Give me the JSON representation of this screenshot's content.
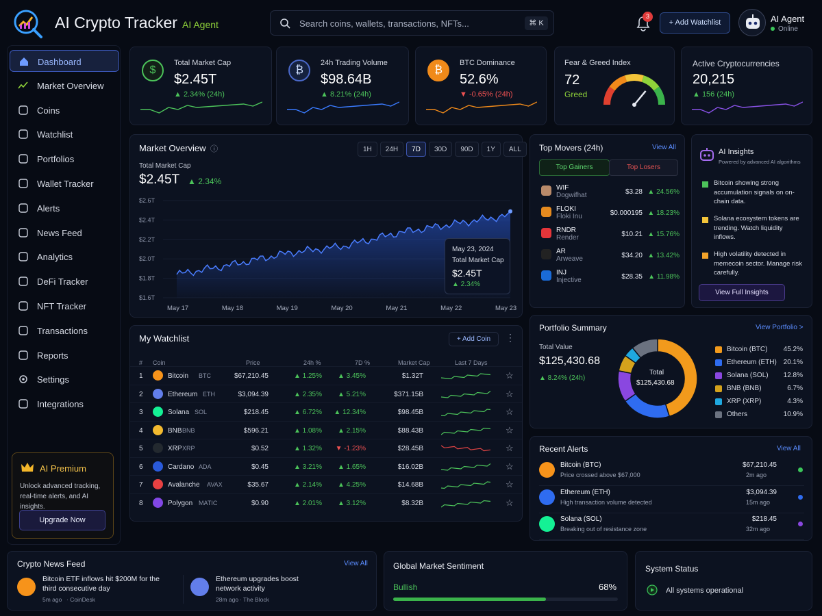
{
  "app": {
    "title": "AI Crypto Tracker",
    "subtitle": "AI Agent"
  },
  "header": {
    "search_placeholder": "Search coins, wallets, transactions, NFTs...",
    "search_shortcut": "⌘ K",
    "notifications": "3",
    "add_watchlist": "+ Add Watchlist",
    "agent_name": "AI Agent",
    "agent_status": "Online"
  },
  "sidebar": {
    "items": [
      {
        "label": "Dashboard",
        "icon": "home-icon"
      },
      {
        "label": "Market Overview",
        "icon": "chart-icon"
      },
      {
        "label": "Coins",
        "icon": "dollar-coin-icon"
      },
      {
        "label": "Watchlist",
        "icon": "clipboard-icon"
      },
      {
        "label": "Portfolios",
        "icon": "briefcase-icon"
      },
      {
        "label": "Wallet Tracker",
        "icon": "wallet-icon"
      },
      {
        "label": "Alerts",
        "icon": "bell-icon"
      },
      {
        "label": "News Feed",
        "icon": "newspaper-icon"
      },
      {
        "label": "Analytics",
        "icon": "bar-chart-icon"
      },
      {
        "label": "DeFi Tracker",
        "icon": "defi-icon"
      },
      {
        "label": "NFT Tracker",
        "icon": "nft-icon"
      },
      {
        "label": "Transactions",
        "icon": "transactions-icon"
      },
      {
        "label": "Reports",
        "icon": "report-icon"
      },
      {
        "label": "Settings",
        "icon": "gear-icon"
      },
      {
        "label": "Integrations",
        "icon": "puzzle-icon"
      }
    ],
    "premium": {
      "title": "AI Premium",
      "desc": "Unlock advanced tracking, real-time alerts, and AI insights.",
      "button": "Upgrade Now"
    }
  },
  "stats": [
    {
      "label": "Total Market Cap",
      "value": "$2.45T",
      "change": "▲ 2.34% (24h)",
      "color": "#4cc35a"
    },
    {
      "label": "24h Trading Volume",
      "value": "$98.64B",
      "change": "▲ 8.21% (24h)",
      "color": "#3a7bff"
    },
    {
      "label": "BTC Dominance",
      "value": "52.6%",
      "change": "▼ -0.65% (24h)",
      "color": "#f08a1a"
    },
    {
      "label": "Fear & Greed Index",
      "value": "72",
      "change": "Greed"
    },
    {
      "label": "Active Cryptocurrencies",
      "value": "20,215",
      "change": "▲ 156 (24h)",
      "color": "#8a52e8"
    }
  ],
  "market_overview": {
    "title": "Market Overview",
    "ranges": [
      "1H",
      "24H",
      "7D",
      "30D",
      "90D",
      "1Y",
      "ALL"
    ],
    "selected": "7D",
    "label": "Total Market Cap",
    "value": "$2.45T",
    "change": "▲ 2.34%",
    "tooltip": {
      "date": "May 23, 2024",
      "label": "Total Market Cap",
      "value": "$2.45T",
      "change": "▲ 2.34%"
    }
  },
  "chart_data": {
    "type": "area",
    "x": [
      "May 17",
      "May 18",
      "May 19",
      "May 20",
      "May 21",
      "May 22",
      "May 23"
    ],
    "y_ticks": [
      "$1.6T",
      "$1.8T",
      "$2.0T",
      "$2.2T",
      "$2.4T",
      "$2.6T"
    ],
    "ylim": [
      1.6,
      2.6
    ],
    "series": [
      {
        "values": [
          1.84,
          1.94,
          2.06,
          2.13,
          2.27,
          2.36,
          2.45
        ]
      }
    ]
  },
  "watchlist": {
    "title": "My Watchlist",
    "add": "+ Add Coin",
    "headers": [
      "#",
      "Coin",
      "Price",
      "24h %",
      "7D %",
      "Market Cap",
      "Last 7 Days"
    ],
    "rows": [
      {
        "n": "1",
        "name": "Bitcoin",
        "sym": "BTC",
        "price": "$67,210.45",
        "d24": "▲ 1.25%",
        "d7": "▲ 3.45%",
        "mcap": "$1.32T",
        "color": "#f7931a",
        "trend": "up"
      },
      {
        "n": "2",
        "name": "Ethereum",
        "sym": "ETH",
        "price": "$3,094.39",
        "d24": "▲ 2.35%",
        "d7": "▲ 5.21%",
        "mcap": "$371.15B",
        "color": "#627eea",
        "trend": "up"
      },
      {
        "n": "3",
        "name": "Solana",
        "sym": "SOL",
        "price": "$218.45",
        "d24": "▲ 6.72%",
        "d7": "▲ 12.34%",
        "mcap": "$98.45B",
        "color": "#14f195",
        "trend": "up"
      },
      {
        "n": "4",
        "name": "BNB",
        "sym": "BNB",
        "price": "$596.21",
        "d24": "▲ 1.08%",
        "d7": "▲ 2.15%",
        "mcap": "$88.43B",
        "color": "#f3ba2f",
        "trend": "up"
      },
      {
        "n": "5",
        "name": "XRP",
        "sym": "XRP",
        "price": "$0.52",
        "d24": "▲ 1.32%",
        "d7": "▼ -1.23%",
        "mcap": "$28.45B",
        "color": "#23292f",
        "trend": "down"
      },
      {
        "n": "6",
        "name": "Cardano",
        "sym": "ADA",
        "price": "$0.45",
        "d24": "▲ 3.21%",
        "d7": "▲ 1.65%",
        "mcap": "$16.02B",
        "color": "#2a5ada",
        "trend": "up"
      },
      {
        "n": "7",
        "name": "Avalanche",
        "sym": "AVAX",
        "price": "$35.67",
        "d24": "▲ 2.14%",
        "d7": "▲ 4.25%",
        "mcap": "$14.68B",
        "color": "#e84142",
        "trend": "up"
      },
      {
        "n": "8",
        "name": "Polygon",
        "sym": "MATIC",
        "price": "$0.90",
        "d24": "▲ 2.01%",
        "d7": "▲ 3.12%",
        "mcap": "$8.32B",
        "color": "#8247e5",
        "trend": "up"
      }
    ]
  },
  "movers": {
    "title": "Top Movers (24h)",
    "view_all": "View All",
    "tabs": [
      "Top Gainers",
      "Top Losers"
    ],
    "rows": [
      {
        "sym": "WIF",
        "name": "Dogwifhat",
        "price": "$3.28",
        "chg": "▲ 24.56%",
        "color": "#b98a6a"
      },
      {
        "sym": "FLOKI",
        "name": "Floki Inu",
        "price": "$0.000195",
        "chg": "▲ 18.23%",
        "color": "#e58a1f"
      },
      {
        "sym": "RNDR",
        "name": "Render",
        "price": "$10.21",
        "chg": "▲ 15.76%",
        "color": "#e5353a"
      },
      {
        "sym": "AR",
        "name": "Arweave",
        "price": "$34.20",
        "chg": "▲ 13.42%",
        "color": "#222"
      },
      {
        "sym": "INJ",
        "name": "Injective",
        "price": "$28.35",
        "chg": "▲ 11.98%",
        "color": "#1a6bd8"
      }
    ]
  },
  "insights": {
    "title": "AI Insights",
    "sub": "Powered by advanced AI algorithms",
    "items": [
      "Bitcoin showing strong accumulation signals on on-chain data.",
      "Solana ecosystem tokens are trending. Watch liquidity inflows.",
      "High volatility detected in memecoin sector. Manage risk carefully."
    ],
    "button": "View Full Insights"
  },
  "portfolio": {
    "title": "Portfolio Summary",
    "view": "View Portfolio >",
    "label": "Total Value",
    "value": "$125,430.68",
    "change": "▲ 8.24% (24h)",
    "center_label": "Total",
    "center_value": "$125,430.68",
    "slices": [
      {
        "name": "Bitcoin (BTC)",
        "pct": 45.2,
        "pct_label": "45.2%",
        "color": "#f29a1c"
      },
      {
        "name": "Ethereum (ETH)",
        "pct": 20.1,
        "pct_label": "20.1%",
        "color": "#2f6cf0"
      },
      {
        "name": "Solana (SOL)",
        "pct": 12.8,
        "pct_label": "12.8%",
        "color": "#8a47e0"
      },
      {
        "name": "BNB (BNB)",
        "pct": 6.7,
        "pct_label": "6.7%",
        "color": "#d4a21c"
      },
      {
        "name": "XRP (XRP)",
        "pct": 4.3,
        "pct_label": "4.3%",
        "color": "#1fa8e0"
      },
      {
        "name": "Others",
        "pct": 10.9,
        "pct_label": "10.9%",
        "color": "#6b7280"
      }
    ]
  },
  "alerts": {
    "title": "Recent Alerts",
    "view_all": "View All",
    "rows": [
      {
        "name": "Bitcoin",
        "sym": "(BTC)",
        "desc": "Price crossed above $67,000",
        "price": "$67,210.45",
        "time": "2m ago",
        "color": "#f7931a",
        "dot": "#3bc55a"
      },
      {
        "name": "Ethereum",
        "sym": "(ETH)",
        "desc": "High transaction volume detected",
        "price": "$3,094.39",
        "time": "15m ago",
        "color": "#2f6cf0",
        "dot": "#2f6cf0"
      },
      {
        "name": "Solana",
        "sym": "(SOL)",
        "desc": "Breaking out of resistance zone",
        "price": "$218.45",
        "time": "32m ago",
        "color": "#14f195",
        "dot": "#8a47e0"
      }
    ]
  },
  "news": {
    "title": "Crypto News Feed",
    "view_all": "View All",
    "items": [
      {
        "title": "Bitcoin ETF inflows hit $200M for the third consecutive day",
        "time": "5m ago",
        "source": "CoinDesk",
        "color": "#f7931a"
      },
      {
        "title": "Ethereum upgrades boost network activity",
        "time": "28m ago",
        "source": "The Block",
        "color": "#627eea"
      }
    ]
  },
  "sentiment": {
    "title": "Global Market Sentiment",
    "label": "Bullish",
    "value": "68%",
    "level": 0.68
  },
  "system": {
    "title": "System Status",
    "message": "All systems operational"
  }
}
